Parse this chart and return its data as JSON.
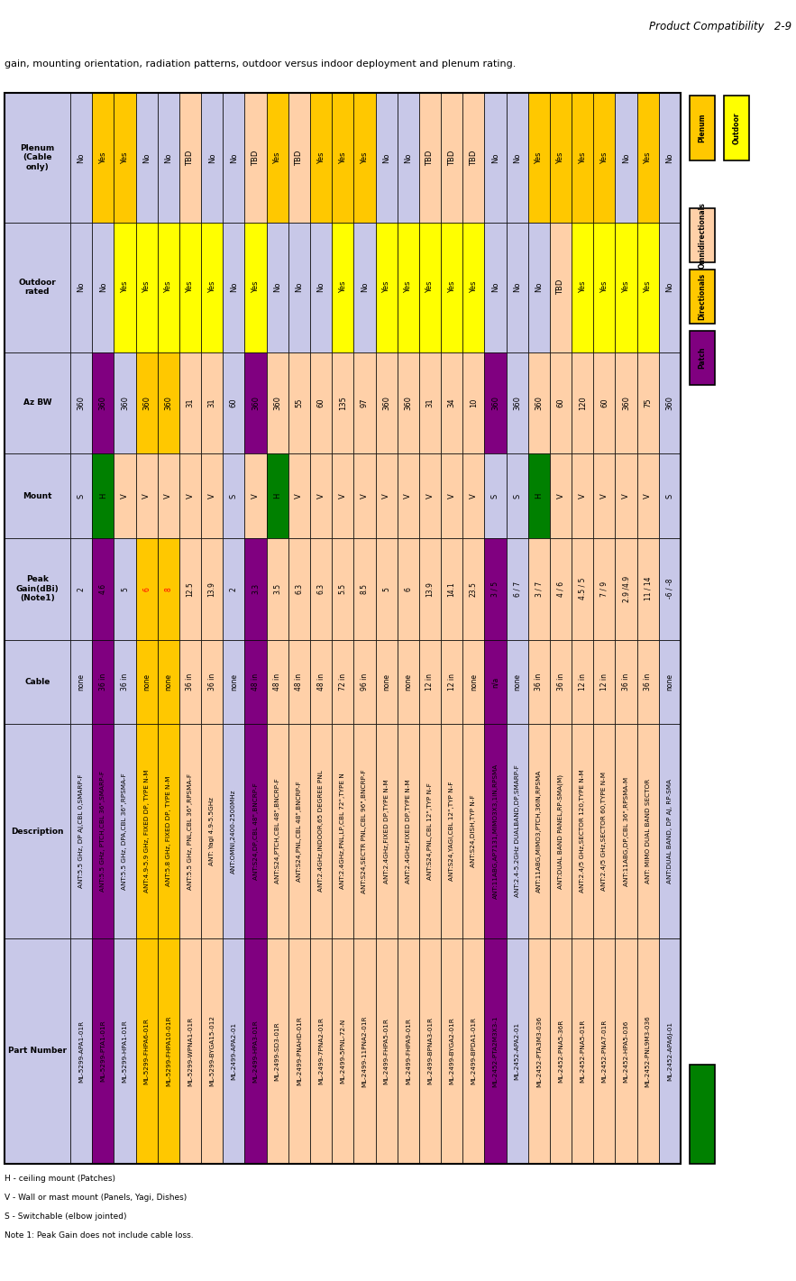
{
  "title": "Product Compatibility   2-9",
  "subtitle": "gain, mounting orientation, radiation patterns, outdoor versus indoor deployment and plenum rating.",
  "row_headers": [
    "Part Number",
    "Description",
    "Cable",
    "Peak\nGain(dBi)\n(Note1)",
    "Mount",
    "Az BW",
    "Outdoor\nrated",
    "Plenum\n(Cable\nonly)"
  ],
  "data_cols": [
    [
      "ML-5299-APA1-01R",
      "ANT:5.5 GHz, DP AJ,CBL 0,SMARP-F",
      "none",
      "2",
      "S",
      "360",
      "No",
      "No"
    ],
    [
      "ML-5299-PTA1-01R",
      "ANT:5.5 GHz, PTCH,CBL 36\",SMARP-F",
      "36 in",
      "4.6",
      "H",
      "360",
      "No",
      "Yes"
    ],
    [
      "ML-5299-HPA1-01R",
      "ANT:5.5 GHz, DPA,CBL 36\",RPSMA-F",
      "36 in",
      "5",
      "V",
      "360",
      "Yes",
      "Yes"
    ],
    [
      "ML-5299-FHPA6-01R",
      "ANT:4.9-5.9 GHz, FIXED DP, TYPE N-M",
      "none",
      "6",
      "V",
      "360",
      "Yes",
      "No"
    ],
    [
      "ML-5299-FHPA10-01R",
      "ANT:5.8 GHz, FIXED DP, TYPE N-M",
      "none",
      "8",
      "V",
      "360",
      "Yes",
      "No"
    ],
    [
      "ML-5299-WPNA1-01R",
      "ANT:5.5 GHz, PNL,CBL 36\",RPSMA-F",
      "36 in",
      "12.5",
      "V",
      "31",
      "Yes",
      "TBD"
    ],
    [
      "ML-5299-BYGA15-012",
      "ANT: Yagi 4.9-5.5GHz",
      "36 in",
      "13.9",
      "V",
      "31",
      "Yes",
      "No"
    ],
    [
      "ML-2499-APA2-01",
      "ANT:OMNI,2400-2500MHz",
      "none",
      "2",
      "S",
      "60",
      "No",
      "No"
    ],
    [
      "ML-2499-HPA3-01R",
      "ANT:S24,DP,CBL 48\",BNCRP-F",
      "48 in",
      "3.3",
      "V",
      "360",
      "Yes",
      "TBD"
    ],
    [
      "ML-2499-SD3-01R",
      "ANT:S24,PTCH,CBL 48\",BNCRP-F",
      "48 in",
      "3.5",
      "H",
      "360",
      "No",
      "Yes"
    ],
    [
      "ML-2499-PNAHD-01R",
      "ANT:S24,PNL,CBL 48\",BNCRP-F",
      "48 in",
      "6.3",
      "V",
      "55",
      "No",
      "TBD"
    ],
    [
      "ML-2499-7PNA2-01R",
      "ANT:2.4GHz,INDOOR,65 DEGREE PNL",
      "48 in",
      "6.3",
      "V",
      "60",
      "No",
      "Yes"
    ],
    [
      "ML-2499-5PNL-72-N",
      "ANT:2.4GHz,PNL,LP,CBL 72\",TYPE N",
      "72 in",
      "5.5",
      "V",
      "135",
      "Yes",
      "Yes"
    ],
    [
      "ML-2499-11PNA2-01R",
      "ANT:S24,SECTR PNL,CBL 96\",BNCRP-F",
      "96 in",
      "8.5",
      "V",
      "97",
      "No",
      "Yes"
    ],
    [
      "ML-2499-FHPA5-01R",
      "ANT:2.4GHz,FIXED DP,TYPE N-M",
      "none",
      "5",
      "V",
      "360",
      "Yes",
      "No"
    ],
    [
      "ML-2499-FHPA9-01R",
      "ANT:2.4GHz,FIXED DP,TYPE N-M",
      "none",
      "6",
      "V",
      "360",
      "Yes",
      "No"
    ],
    [
      "ML-2499-BPNA3-01R",
      "ANT:S24,PNL,CBL 12\",TYP N-F",
      "12 in",
      "13.9",
      "V",
      "31",
      "Yes",
      "TBD"
    ],
    [
      "ML-2499-BYGA2-01R",
      "ANT:S24,YAGI,CBL 12\",TYP N-F",
      "12 in",
      "14.1",
      "V",
      "34",
      "Yes",
      "TBD"
    ],
    [
      "ML-2499-BPDA1-01R",
      "ANT:S24,DISH,TYP N-F",
      "none",
      "23.5",
      "V",
      "10",
      "Yes",
      "TBD"
    ],
    [
      "ML-2452-PTA2M3X3-1",
      "ANT:11ABG,AP7131,MIMO3X3,1IN,RPSMA",
      "n/a",
      "3 / 5",
      "S",
      "360",
      "No",
      "No"
    ],
    [
      "ML-2452-APA2-01",
      "ANT:2.4-5.2GHz DUALBAND,DP,SMARP-F",
      "none",
      "6 / 7",
      "S",
      "360",
      "No",
      "No"
    ],
    [
      "ML-2452-PTA3M3-036",
      "ANT:11ABG,MIMO3,PTCH,36IN,RPSMA",
      "36 in",
      "3 / 7",
      "H",
      "360",
      "No",
      "Yes"
    ],
    [
      "ML-2452-PNA5-36R",
      "ANT:DUAL BAND PANEL,RP-SMA(M)",
      "36 in",
      "4 / 6",
      "V",
      "60",
      "TBD",
      "Yes"
    ],
    [
      "ML-2452-PNA5-01R",
      "ANT:2.4/5 GHz,SECTOR 120,TYPE N-M",
      "12 in",
      "4.5 / 5",
      "V",
      "120",
      "Yes",
      "Yes"
    ],
    [
      "ML-2452-PNA7-01R",
      "ANT:2.4/5 GHz,SECTOR 60,TYPE N-M",
      "12 in",
      "7 / 9",
      "V",
      "60",
      "Yes",
      "Yes"
    ],
    [
      "ML-2452-HPA5-036",
      "ANT:11ABG,DP,CBL 36\",RPSMA-M",
      "36 in",
      "2.9 /4.9",
      "V",
      "360",
      "Yes",
      "No"
    ],
    [
      "ML-2452-PNL9M3-036",
      "ANT: MIMO DUAL BAND SECTOR",
      "36 in",
      "11 / 14",
      "V",
      "75",
      "Yes",
      "Yes"
    ],
    [
      "ML-2452-APA6J-01",
      "ANT:DUAL BAND, DP AJ, RP-SMA",
      "none",
      "-6 / -8",
      "S",
      "360",
      "No",
      "No"
    ]
  ],
  "col_bg": [
    "#c8c8e8",
    "#800080",
    "#c8c8e8",
    "#ffc800",
    "#ffc800",
    "#ffd0a8",
    "#ffd0a8",
    "#c8c8e8",
    "#800080",
    "#ffd0a8",
    "#ffd0a8",
    "#ffd0a8",
    "#ffd0a8",
    "#ffd0a8",
    "#ffd0a8",
    "#ffd0a8",
    "#ffd0a8",
    "#ffd0a8",
    "#ffd0a8",
    "#800080",
    "#c8c8e8",
    "#ffd0a8",
    "#ffd0a8",
    "#ffd0a8",
    "#ffd0a8",
    "#ffd0a8",
    "#ffd0a8",
    "#c8c8e8"
  ],
  "outdoor_color_map": {
    "No": "#c8c8e8",
    "Yes": "#ffff00",
    "TBD": "#ffd0a8"
  },
  "plenum_color_map": {
    "No": "#c8c8e8",
    "Yes": "#ffc800",
    "TBD": "#ffd0a8"
  },
  "mount_color_map": {
    "S": "#c8c8e8",
    "H": "#008000",
    "V": "#ffd0a8"
  },
  "gain_red_cols": [
    3,
    4
  ],
  "header_color": "#c8c8e8",
  "notes": [
    "H - ceiling mount (Patches)",
    "V - Wall or mast mount (Panels, Yagi, Dishes)",
    "S - Switchable (elbow jointed)",
    "Note 1: Peak Gain does not include cable loss."
  ],
  "legend_cat": [
    {
      "label": "Omnidirectionals",
      "color": "#ffd0a8"
    },
    {
      "label": "Directionals",
      "color": "#ffc800"
    },
    {
      "label": "Patch",
      "color": "#800080"
    }
  ],
  "legend_env": [
    {
      "label": "Plenum",
      "color": "#ffc800"
    },
    {
      "label": "Outdoor",
      "color": "#ffff00"
    }
  ]
}
